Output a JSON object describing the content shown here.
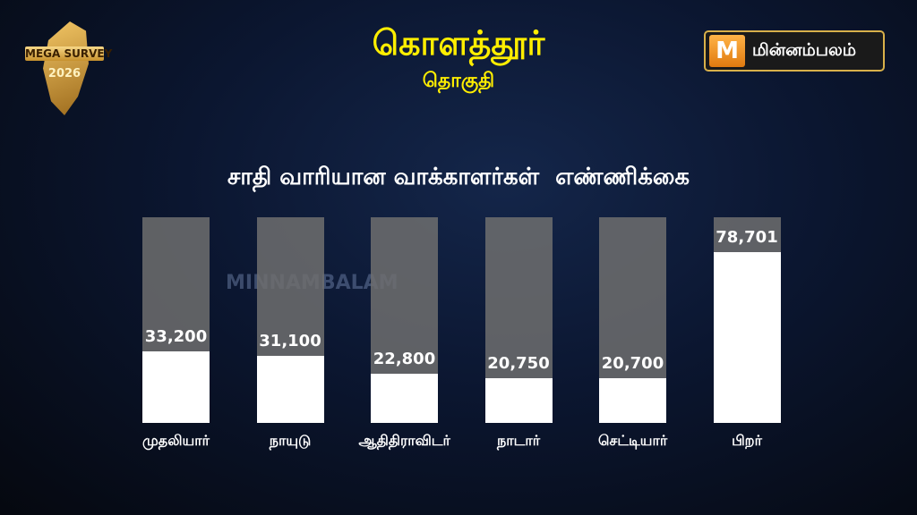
{
  "header": {
    "title": "கொளத்தூர்",
    "subtitle": "தொகுதி"
  },
  "badge": {
    "line1": "MEGA SURVEY",
    "line2": "2026"
  },
  "logo": {
    "icon": "M",
    "text": "மின்னம்பலம்"
  },
  "watermark": "MINNAMBALAM",
  "chart_data": {
    "type": "bar",
    "title": "சாதி வாரியான வாக்காளர்கள்  எண்ணிக்கை",
    "categories": [
      "முதலியார்",
      "நாயுடு",
      "ஆதிதிராவிடர்",
      "நாடார்",
      "செட்டியார்",
      "பிறர்"
    ],
    "values": [
      33200,
      31100,
      22800,
      20750,
      20700,
      78701
    ],
    "labels": [
      "33,200",
      "31,100",
      "22,800",
      "20,750",
      "20,700",
      "78,701"
    ],
    "ylim": [
      0,
      95000
    ],
    "grid": false,
    "colors": {
      "bar": "#ffffff",
      "track": "#6e6e6e",
      "title": "#ffee00"
    }
  }
}
